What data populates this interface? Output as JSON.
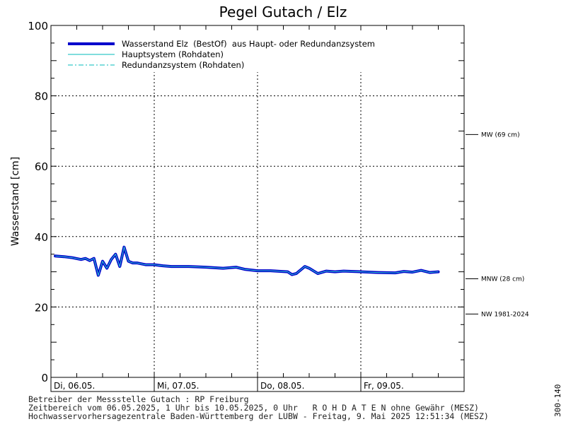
{
  "chart_data": {
    "type": "line",
    "title": "Pegel Gutach / Elz",
    "ylabel": "Wasserstand [cm]",
    "xlabel": "",
    "ylim": [
      0,
      100
    ],
    "yticks": [
      0,
      20,
      40,
      60,
      80,
      100
    ],
    "x_start": "2025-05-06T00:00",
    "x_end": "2025-05-10T00:00",
    "x_ticks": [
      {
        "x": "2025-05-06T00:00",
        "label": "Di, 06.05."
      },
      {
        "x": "2025-05-07T00:00",
        "label": "Mi, 07.05."
      },
      {
        "x": "2025-05-08T00:00",
        "label": "Do, 08.05."
      },
      {
        "x": "2025-05-09T00:00",
        "label": "Fr, 09.05."
      }
    ],
    "grid": true,
    "legend_position": "top-left",
    "legend": [
      {
        "label": "Wasserstand Elz  (BestOf)  aus Haupt- oder Redundanzsystem",
        "style": "thick",
        "color": "#0000cc"
      },
      {
        "label": "Hauptsystem (Rohdaten)",
        "style": "solid",
        "color": "#00bbbb"
      },
      {
        "label": "Redundanzsystem (Rohdaten)",
        "style": "dashdot",
        "color": "#00bbbb"
      }
    ],
    "reference_lines": [
      {
        "label": "MW (69 cm)",
        "value": 69
      },
      {
        "label": "MNW (28 cm)",
        "value": 28
      },
      {
        "label": "NW 1981-2024",
        "value": 18
      }
    ],
    "series": [
      {
        "name": "Wasserstand Elz  (BestOf)  aus Haupt- oder Redundanzsystem",
        "color": "#0000cc",
        "x": [
          "2025-05-06T01:00",
          "2025-05-06T03:00",
          "2025-05-06T05:00",
          "2025-05-06T07:00",
          "2025-05-06T08:00",
          "2025-05-06T09:00",
          "2025-05-06T10:00",
          "2025-05-06T11:00",
          "2025-05-06T12:00",
          "2025-05-06T13:00",
          "2025-05-06T14:00",
          "2025-05-06T15:00",
          "2025-05-06T16:00",
          "2025-05-06T17:00",
          "2025-05-06T18:00",
          "2025-05-06T19:00",
          "2025-05-06T20:00",
          "2025-05-06T22:00",
          "2025-05-07T00:00",
          "2025-05-07T02:00",
          "2025-05-07T04:00",
          "2025-05-07T08:00",
          "2025-05-07T12:00",
          "2025-05-07T16:00",
          "2025-05-07T19:00",
          "2025-05-07T21:00",
          "2025-05-08T00:00",
          "2025-05-08T03:00",
          "2025-05-08T07:00",
          "2025-05-08T08:00",
          "2025-05-08T09:00",
          "2025-05-08T10:00",
          "2025-05-08T11:00",
          "2025-05-08T12:00",
          "2025-05-08T14:00",
          "2025-05-08T16:00",
          "2025-05-08T18:00",
          "2025-05-08T20:00",
          "2025-05-09T00:00",
          "2025-05-09T04:00",
          "2025-05-09T08:00",
          "2025-05-09T10:00",
          "2025-05-09T12:00",
          "2025-05-09T14:00",
          "2025-05-09T16:00",
          "2025-05-09T18:00"
        ],
        "values": [
          34.5,
          34.3,
          34.0,
          33.5,
          33.8,
          33.2,
          33.8,
          29.0,
          33.0,
          31.0,
          33.5,
          35.0,
          31.5,
          37.0,
          33.0,
          32.5,
          32.5,
          32.0,
          32.0,
          31.7,
          31.5,
          31.5,
          31.3,
          31.0,
          31.3,
          30.7,
          30.3,
          30.3,
          30.0,
          29.2,
          29.5,
          30.5,
          31.5,
          31.0,
          29.5,
          30.2,
          30.0,
          30.2,
          30.0,
          29.8,
          29.7,
          30.1,
          29.9,
          30.4,
          29.8,
          30.0
        ]
      }
    ]
  },
  "footer": {
    "line1": "Betreiber der Messstelle Gutach : RP Freiburg",
    "line2": "Zeitbereich vom 06.05.2025, 1 Uhr bis 10.05.2025, 0 Uhr   R O H D A T E N ohne Gewähr (MESZ)",
    "line3": "Hochwasservorhersagezentrale Baden-Württemberg der LUBW - Freitag, 9. Mai 2025 12:51:34 (MESZ)",
    "side_code": "300-140"
  }
}
